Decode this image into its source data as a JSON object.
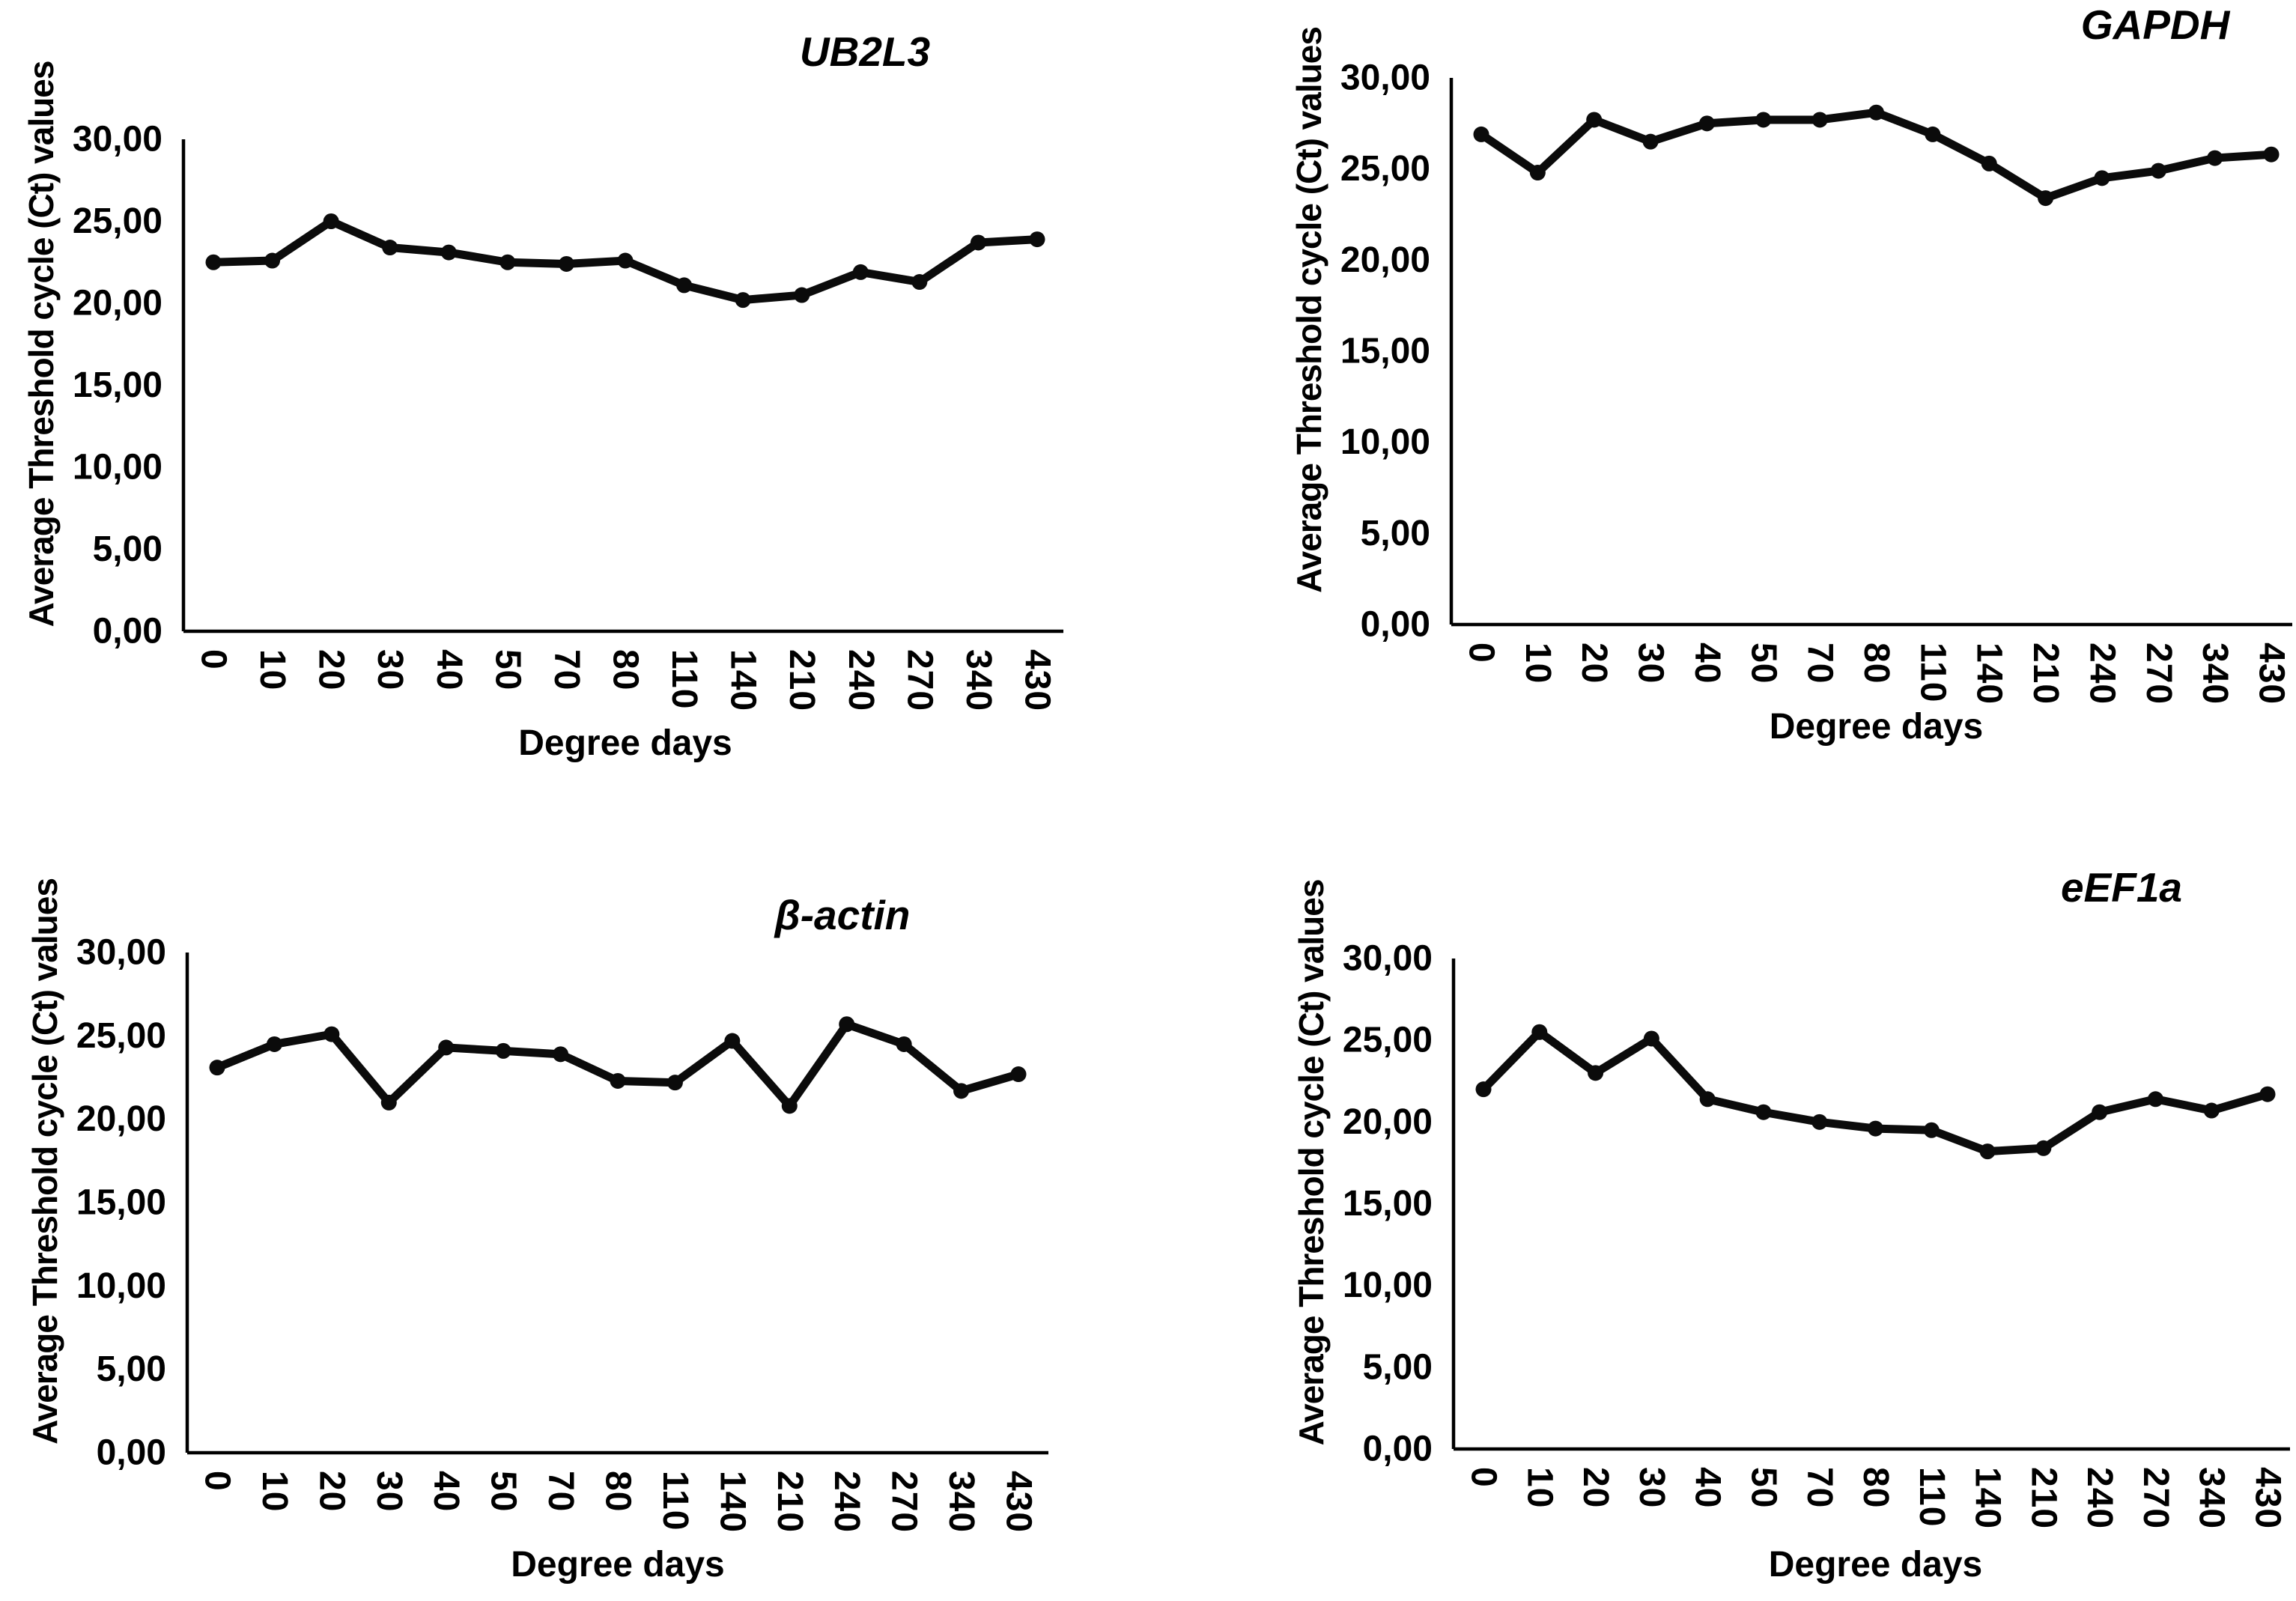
{
  "page": {
    "background_color": "#ffffff",
    "line_color": "#0b0b0b",
    "text_color": "#000000"
  },
  "axis": {
    "y_title": "Average Threshold cycle (Ct) values",
    "x_title": "Degree days",
    "y_tick_labels": [
      "30,00",
      "25,00",
      "20,00",
      "15,00",
      "10,00",
      "5,00",
      "0,00"
    ],
    "y_max": 30,
    "y_min": 0,
    "y_step": 5
  },
  "chart_data": [
    {
      "type": "line",
      "title": "UB2L3",
      "categories": [
        "0",
        "10",
        "20",
        "30",
        "40",
        "50",
        "70",
        "80",
        "110",
        "140",
        "210",
        "240",
        "270",
        "340",
        "430"
      ],
      "values": [
        22.5,
        22.6,
        25.0,
        23.4,
        23.1,
        22.5,
        22.4,
        22.6,
        21.1,
        20.2,
        20.5,
        21.9,
        21.3,
        23.7,
        23.9
      ],
      "xlabel": "Degree days",
      "ylabel": "Average Threshold cycle (Ct) values",
      "ylim": [
        0,
        30
      ],
      "grid": false,
      "legend": "none",
      "marker": "circle"
    },
    {
      "type": "line",
      "title": "GAPDH",
      "categories": [
        "0",
        "10",
        "20",
        "30",
        "40",
        "50",
        "70",
        "80",
        "110",
        "140",
        "210",
        "240",
        "270",
        "340",
        "430"
      ],
      "values": [
        26.9,
        24.8,
        27.7,
        26.5,
        27.5,
        27.7,
        27.7,
        28.1,
        26.9,
        25.3,
        23.4,
        24.5,
        24.9,
        25.6,
        25.8
      ],
      "xlabel": "Degree days",
      "ylabel": "Average Threshold cycle (Ct) values",
      "ylim": [
        0,
        30
      ],
      "grid": false,
      "legend": "none",
      "marker": "circle"
    },
    {
      "type": "line",
      "title": "β-actin",
      "categories": [
        "0",
        "10",
        "20",
        "30",
        "40",
        "50",
        "70",
        "80",
        "110",
        "140",
        "210",
        "240",
        "270",
        "340",
        "430"
      ],
      "values": [
        23.1,
        24.5,
        25.1,
        21.0,
        24.3,
        24.1,
        23.9,
        22.3,
        22.2,
        24.7,
        20.8,
        25.7,
        24.5,
        21.7,
        22.7
      ],
      "xlabel": "Degree days",
      "ylabel": "Average Threshold cycle (Ct) values",
      "ylim": [
        0,
        30
      ],
      "grid": false,
      "legend": "none",
      "marker": "circle"
    },
    {
      "type": "line",
      "title": "eEF1a",
      "categories": [
        "0",
        "10",
        "20",
        "30",
        "40",
        "50",
        "70",
        "80",
        "110",
        "140",
        "210",
        "240",
        "270",
        "340",
        "430"
      ],
      "values": [
        22.0,
        25.5,
        23.0,
        25.1,
        21.4,
        20.6,
        20.0,
        19.6,
        19.5,
        18.2,
        18.4,
        20.6,
        21.4,
        20.7,
        21.7
      ],
      "xlabel": "Degree days",
      "ylabel": "Average Threshold cycle (Ct) values",
      "ylim": [
        0,
        30
      ],
      "grid": false,
      "legend": "none",
      "marker": "circle"
    }
  ]
}
